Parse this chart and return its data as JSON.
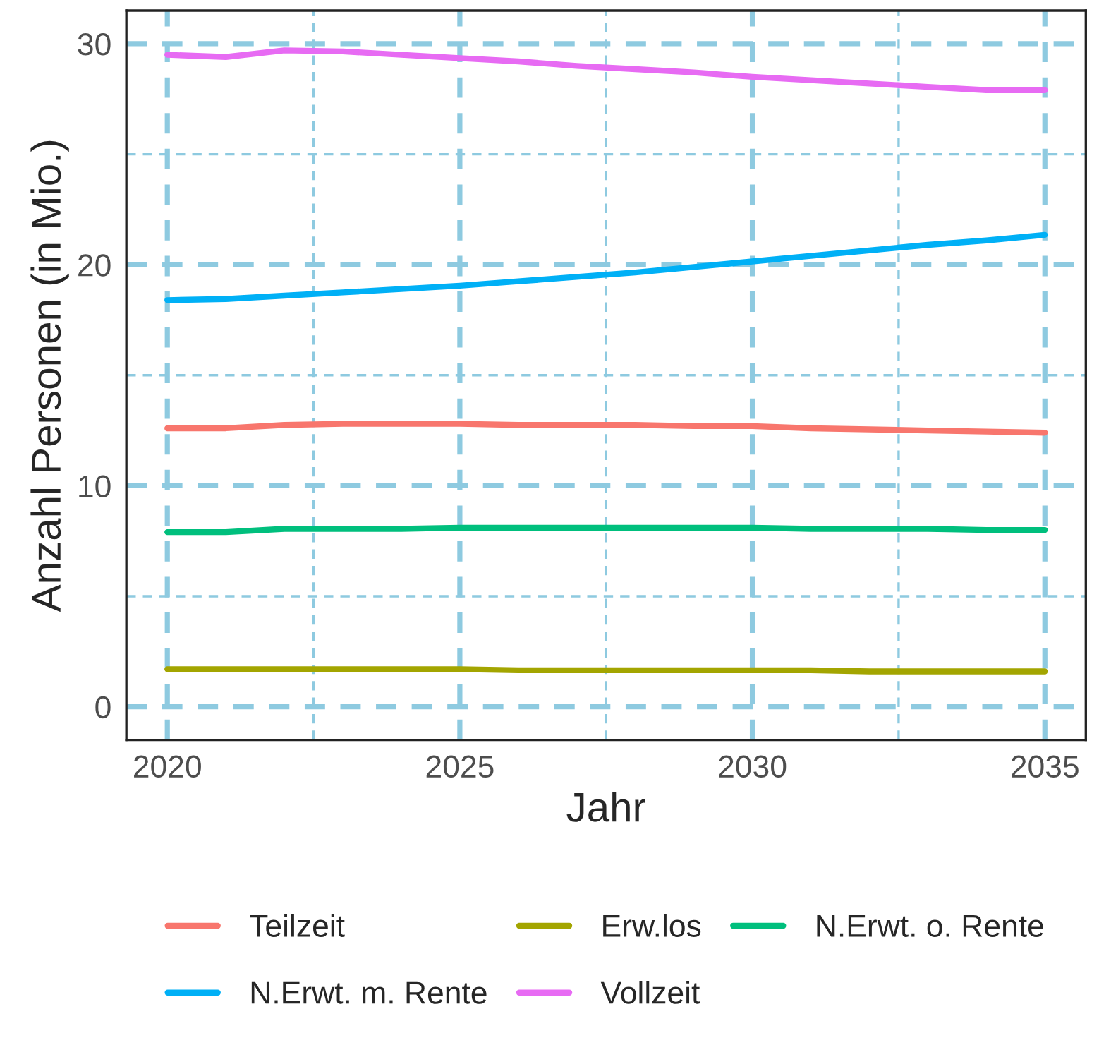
{
  "chart_data": {
    "type": "line",
    "xlabel": "Jahr",
    "ylabel": "Anzahl Personen (in Mio.)",
    "x": [
      2020,
      2021,
      2022,
      2023,
      2024,
      2025,
      2026,
      2027,
      2028,
      2029,
      2030,
      2031,
      2032,
      2033,
      2034,
      2035
    ],
    "series": [
      {
        "name": "Teilzeit",
        "color": "#f8766d",
        "values": [
          12.6,
          12.6,
          12.75,
          12.8,
          12.8,
          12.8,
          12.75,
          12.75,
          12.75,
          12.7,
          12.7,
          12.6,
          12.55,
          12.5,
          12.45,
          12.4
        ]
      },
      {
        "name": "Erw.los",
        "color": "#a3a500",
        "values": [
          1.7,
          1.7,
          1.7,
          1.7,
          1.7,
          1.7,
          1.65,
          1.65,
          1.65,
          1.65,
          1.65,
          1.65,
          1.6,
          1.6,
          1.6,
          1.6
        ]
      },
      {
        "name": "N.Erwt. o. Rente",
        "color": "#00bf7d",
        "values": [
          7.9,
          7.9,
          8.05,
          8.05,
          8.05,
          8.1,
          8.1,
          8.1,
          8.1,
          8.1,
          8.1,
          8.05,
          8.05,
          8.05,
          8.0,
          8.0
        ]
      },
      {
        "name": "N.Erwt. m. Rente",
        "color": "#00b0f6",
        "values": [
          18.4,
          18.45,
          18.6,
          18.75,
          18.9,
          19.05,
          19.25,
          19.45,
          19.65,
          19.9,
          20.15,
          20.4,
          20.65,
          20.9,
          21.1,
          21.35
        ]
      },
      {
        "name": "Vollzeit",
        "color": "#e76bf3",
        "values": [
          29.5,
          29.4,
          29.7,
          29.65,
          29.5,
          29.35,
          29.2,
          29.0,
          28.85,
          28.7,
          28.5,
          28.35,
          28.2,
          28.05,
          27.9,
          27.9
        ]
      }
    ],
    "xlim": [
      2019.3,
      2035.7
    ],
    "ylim": [
      -1.5,
      31.5
    ],
    "xticks": [
      2020,
      {
        "value": 2022.5,
        "label": null
      },
      2025,
      {
        "value": 2027.5,
        "label": null
      },
      2030,
      {
        "value": 2032.5,
        "label": null
      },
      2035
    ],
    "yticks": [
      0,
      {
        "value": 5,
        "label": null
      },
      10,
      {
        "value": 15,
        "label": null
      },
      20,
      {
        "value": 25,
        "label": null
      },
      30
    ],
    "grid": true,
    "legend": "bottom",
    "line_style": "solid",
    "marker": "none"
  }
}
